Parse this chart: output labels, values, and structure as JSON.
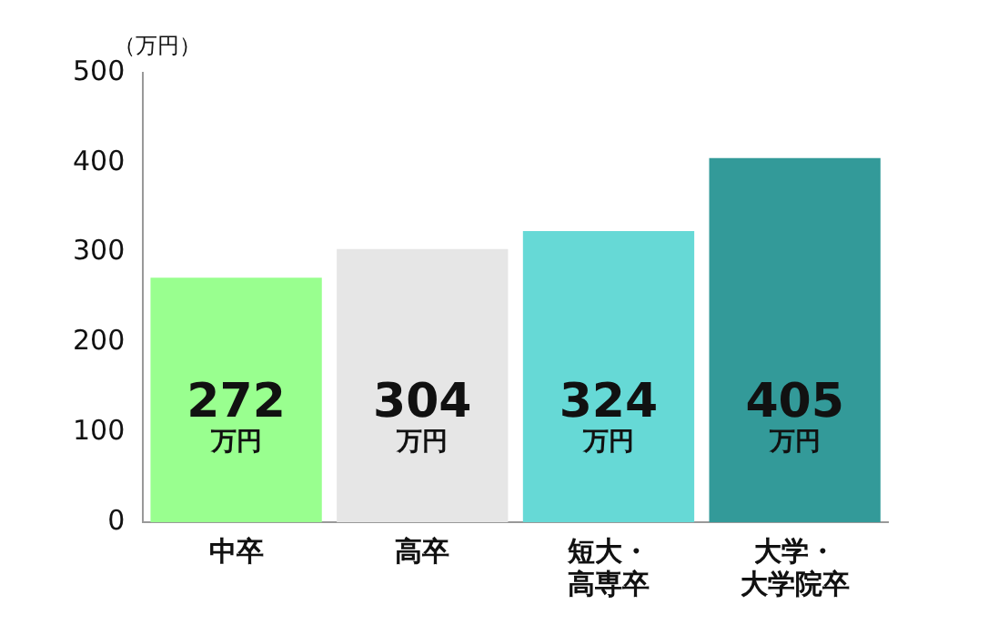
{
  "chart_data": {
    "type": "bar",
    "ylabel": "（万円）",
    "categories": [
      "中卒",
      "高卒",
      "短大・高専卒",
      "大学・大学院卒"
    ],
    "values": [
      272,
      304,
      324,
      405
    ],
    "colors": [
      "#99ff8f",
      "#e6e6e6",
      "#66d9d6",
      "#339a99"
    ],
    "value_labels": [
      "272\n万円",
      "304\n万円",
      "324\n万円",
      "405\n万円"
    ],
    "ylim": [
      0,
      500
    ],
    "yticks": [
      0,
      100,
      200,
      300,
      400,
      500
    ],
    "grid": false,
    "legend": false
  }
}
